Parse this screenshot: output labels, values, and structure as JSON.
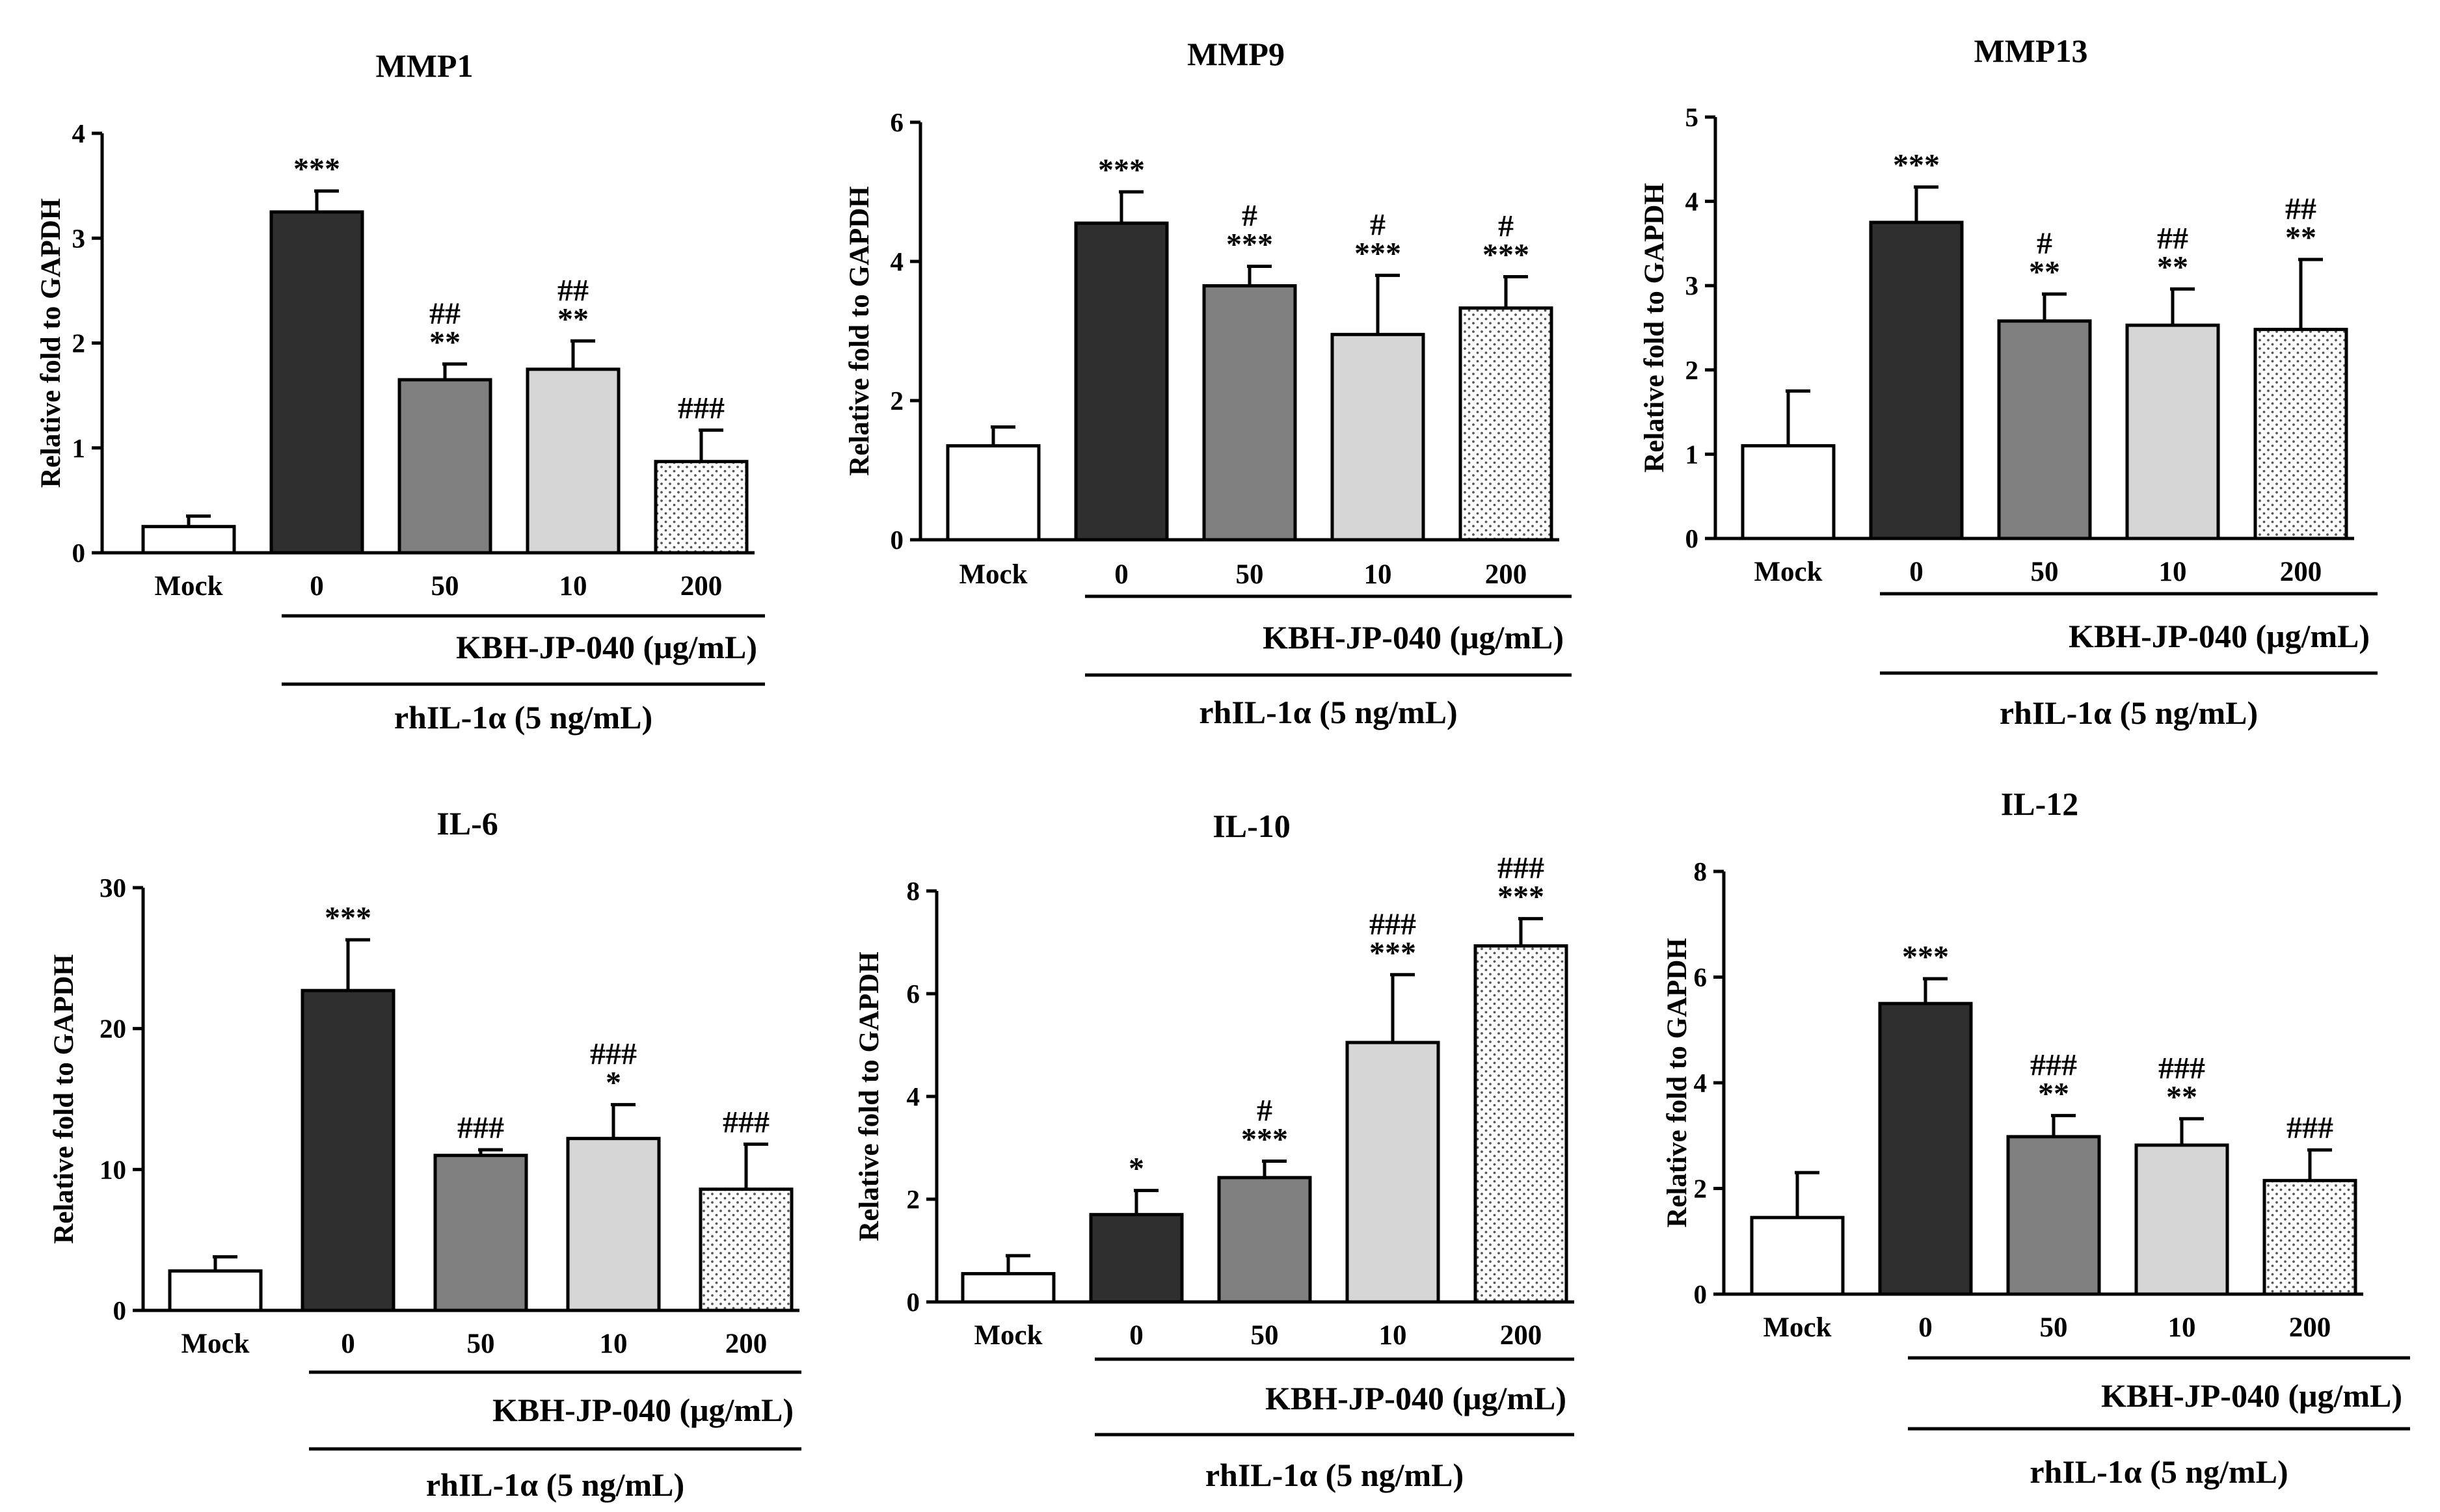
{
  "colors": {
    "mock": "#ffffff",
    "dose0": "#2f2f2f",
    "dose50": "#808080",
    "dose10": "#d6d6d6",
    "dose200": "#ffffff",
    "dose200_dots": "#555555"
  },
  "ylabel": "Relative fold to GAPDH",
  "treatment_label": "KBH-JP-040 (μg/mL)",
  "stimulus_label": "rhIL-1α (5 ng/mL)",
  "categories": [
    "Mock",
    "0",
    "50",
    "10",
    "200"
  ],
  "chart_data": [
    {
      "type": "bar",
      "title": "MMP1",
      "ylim": [
        0,
        4
      ],
      "yticks": [
        "0",
        "1",
        "2",
        "3",
        "4"
      ],
      "categories": [
        "Mock",
        "0",
        "50",
        "10",
        "200"
      ],
      "values": [
        0.25,
        3.25,
        1.65,
        1.75,
        0.87
      ],
      "errors": [
        0.1,
        0.2,
        0.15,
        0.27,
        0.3
      ],
      "annotations": [
        [],
        [
          "***"
        ],
        [
          "##",
          "**"
        ],
        [
          "##",
          "**"
        ],
        [
          "###"
        ]
      ]
    },
    {
      "type": "bar",
      "title": "MMP9",
      "ylim": [
        0,
        6
      ],
      "yticks": [
        "0",
        "2",
        "4",
        "6"
      ],
      "categories": [
        "Mock",
        "0",
        "50",
        "10",
        "200"
      ],
      "values": [
        1.35,
        4.55,
        3.65,
        2.95,
        3.33
      ],
      "errors": [
        0.27,
        0.45,
        0.28,
        0.85,
        0.45
      ],
      "annotations": [
        [],
        [
          "***"
        ],
        [
          "#",
          "***"
        ],
        [
          "#",
          "***"
        ],
        [
          "#",
          "***"
        ]
      ]
    },
    {
      "type": "bar",
      "title": "MMP13",
      "ylim": [
        0,
        5
      ],
      "yticks": [
        "0",
        "1",
        "2",
        "3",
        "4",
        "5"
      ],
      "categories": [
        "Mock",
        "0",
        "50",
        "10",
        "200"
      ],
      "values": [
        1.1,
        3.75,
        2.58,
        2.53,
        2.48
      ],
      "errors": [
        0.65,
        0.42,
        0.32,
        0.43,
        0.83
      ],
      "annotations": [
        [],
        [
          "***"
        ],
        [
          "#",
          "**"
        ],
        [
          "##",
          "**"
        ],
        [
          "##",
          "**"
        ]
      ]
    },
    {
      "type": "bar",
      "title": "IL-6",
      "ylim": [
        0,
        30
      ],
      "yticks": [
        "0",
        "10",
        "20",
        "30"
      ],
      "categories": [
        "Mock",
        "0",
        "50",
        "10",
        "200"
      ],
      "values": [
        2.8,
        22.7,
        11.0,
        12.2,
        8.6
      ],
      "errors": [
        1.0,
        3.6,
        0.4,
        2.4,
        3.2
      ],
      "annotations": [
        [],
        [
          "***"
        ],
        [
          "###"
        ],
        [
          "###",
          "*"
        ],
        [
          "###"
        ]
      ]
    },
    {
      "type": "bar",
      "title": "IL-10",
      "ylim": [
        0,
        8
      ],
      "yticks": [
        "0",
        "2",
        "4",
        "6",
        "8"
      ],
      "categories": [
        "Mock",
        "0",
        "50",
        "10",
        "200"
      ],
      "values": [
        0.55,
        1.7,
        2.42,
        5.05,
        6.93
      ],
      "errors": [
        0.35,
        0.47,
        0.32,
        1.32,
        0.53
      ],
      "annotations": [
        [],
        [
          "*"
        ],
        [
          "#",
          "***"
        ],
        [
          "###",
          "***"
        ],
        [
          "###",
          "***"
        ]
      ]
    },
    {
      "type": "bar",
      "title": "IL-12",
      "ylim": [
        0,
        8
      ],
      "yticks": [
        "0",
        "2",
        "4",
        "6",
        "8"
      ],
      "categories": [
        "Mock",
        "0",
        "50",
        "10",
        "200"
      ],
      "values": [
        1.45,
        5.5,
        2.98,
        2.82,
        2.15
      ],
      "errors": [
        0.85,
        0.47,
        0.4,
        0.5,
        0.58
      ],
      "annotations": [
        [],
        [
          "***"
        ],
        [
          "###",
          "**"
        ],
        [
          "###",
          "**"
        ],
        [
          "###"
        ]
      ]
    }
  ]
}
